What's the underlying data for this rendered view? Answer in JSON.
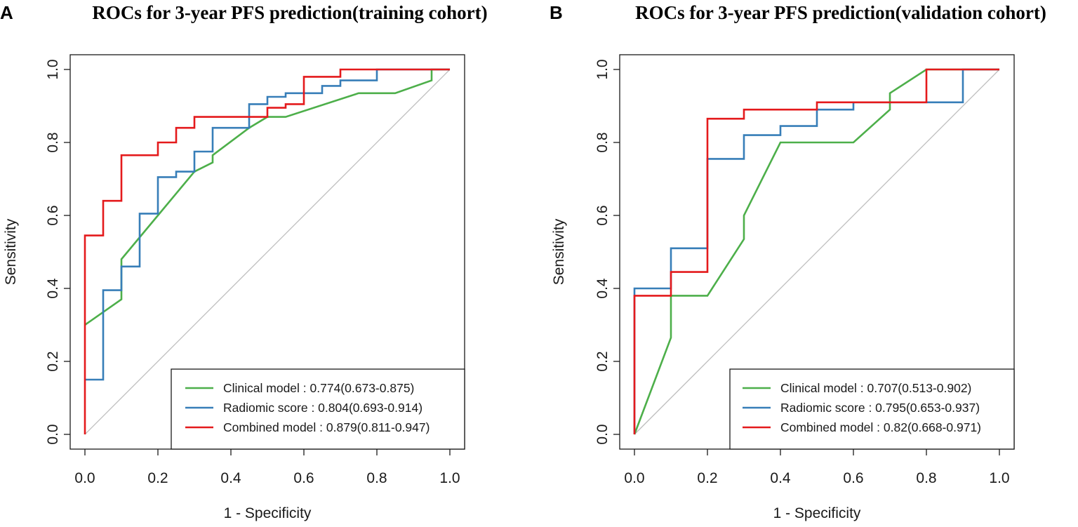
{
  "chart_data": [
    {
      "panel": "A",
      "type": "line",
      "title": "ROCs for 3-year PFS prediction(training cohort)",
      "xlabel": "1 - Specificity",
      "ylabel": "Sensitivity",
      "xlim": [
        0,
        1
      ],
      "ylim": [
        0,
        1
      ],
      "xticks": [
        "0.0",
        "0.2",
        "0.4",
        "0.6",
        "0.8",
        "1.0"
      ],
      "yticks": [
        "0.0",
        "0.2",
        "0.4",
        "0.6",
        "0.8",
        "1.0"
      ],
      "reference_line": {
        "x": [
          0,
          1
        ],
        "y": [
          0,
          1
        ],
        "color": "#bdbdbd"
      },
      "legend_position": "bottom-right",
      "series": [
        {
          "name": "Clinical model : 0.774(0.673-0.875)",
          "color": "#4daf4a",
          "x": [
            0,
            0.1,
            0.1,
            0.2,
            0.3,
            0.35,
            0.35,
            0.45,
            0.5,
            0.55,
            0.75,
            0.85,
            0.95,
            0.95,
            1
          ],
          "y": [
            0.3,
            0.37,
            0.48,
            0.6,
            0.72,
            0.745,
            0.765,
            0.84,
            0.87,
            0.87,
            0.935,
            0.935,
            0.97,
            1.0,
            1.0
          ]
        },
        {
          "name": "Radiomic score : 0.804(0.693-0.914)",
          "color": "#377eb8",
          "x": [
            0,
            0.05,
            0.05,
            0.1,
            0.1,
            0.15,
            0.15,
            0.2,
            0.2,
            0.25,
            0.25,
            0.3,
            0.3,
            0.35,
            0.35,
            0.45,
            0.45,
            0.5,
            0.5,
            0.55,
            0.55,
            0.65,
            0.65,
            0.7,
            0.7,
            0.8,
            0.8,
            1
          ],
          "y": [
            0.15,
            0.15,
            0.395,
            0.395,
            0.46,
            0.46,
            0.605,
            0.605,
            0.705,
            0.705,
            0.72,
            0.72,
            0.775,
            0.775,
            0.84,
            0.84,
            0.905,
            0.905,
            0.925,
            0.925,
            0.935,
            0.935,
            0.955,
            0.955,
            0.97,
            0.97,
            1.0,
            1.0
          ]
        },
        {
          "name": "Combined model : 0.879(0.811-0.947)",
          "color": "#e41a1c",
          "x": [
            0,
            0,
            0.05,
            0.05,
            0.1,
            0.1,
            0.2,
            0.2,
            0.25,
            0.25,
            0.3,
            0.3,
            0.5,
            0.5,
            0.55,
            0.55,
            0.6,
            0.6,
            0.7,
            0.7,
            1
          ],
          "y": [
            0,
            0.545,
            0.545,
            0.64,
            0.64,
            0.765,
            0.765,
            0.8,
            0.8,
            0.84,
            0.84,
            0.87,
            0.87,
            0.895,
            0.895,
            0.905,
            0.905,
            0.98,
            0.98,
            1.0,
            1.0
          ]
        }
      ]
    },
    {
      "panel": "B",
      "type": "line",
      "title": "ROCs for 3-year PFS prediction(validation cohort)",
      "xlabel": "1 - Specificity",
      "ylabel": "Sensitivity",
      "xlim": [
        0,
        1
      ],
      "ylim": [
        0,
        1
      ],
      "xticks": [
        "0.0",
        "0.2",
        "0.4",
        "0.6",
        "0.8",
        "1.0"
      ],
      "yticks": [
        "0.0",
        "0.2",
        "0.4",
        "0.6",
        "0.8",
        "1.0"
      ],
      "reference_line": {
        "x": [
          0,
          1
        ],
        "y": [
          0,
          1
        ],
        "color": "#bdbdbd"
      },
      "legend_position": "bottom-right",
      "series": [
        {
          "name": "Clinical model : 0.707(0.513-0.902)",
          "color": "#4daf4a",
          "x": [
            0,
            0.1,
            0.1,
            0.2,
            0.3,
            0.3,
            0.4,
            0.6,
            0.7,
            0.7,
            0.8,
            1
          ],
          "y": [
            0,
            0.265,
            0.38,
            0.38,
            0.535,
            0.6,
            0.8,
            0.8,
            0.89,
            0.935,
            1.0,
            1.0
          ]
        },
        {
          "name": "Radiomic score : 0.795(0.653-0.937)",
          "color": "#377eb8",
          "x": [
            0,
            0,
            0.1,
            0.1,
            0.2,
            0.2,
            0.3,
            0.3,
            0.4,
            0.4,
            0.5,
            0.5,
            0.6,
            0.6,
            0.8,
            0.8,
            0.9,
            0.9,
            1
          ],
          "y": [
            0,
            0.4,
            0.4,
            0.51,
            0.51,
            0.755,
            0.755,
            0.82,
            0.82,
            0.845,
            0.845,
            0.89,
            0.89,
            0.91,
            0.91,
            0.91,
            0.91,
            1.0,
            1.0
          ]
        },
        {
          "name": "Combined model : 0.82(0.668-0.971)",
          "color": "#e41a1c",
          "x": [
            0,
            0,
            0.1,
            0.1,
            0.2,
            0.2,
            0.3,
            0.3,
            0.5,
            0.5,
            0.8,
            0.8,
            1
          ],
          "y": [
            0,
            0.38,
            0.38,
            0.445,
            0.445,
            0.865,
            0.865,
            0.89,
            0.89,
            0.91,
            0.91,
            1.0,
            1.0
          ]
        }
      ]
    }
  ]
}
